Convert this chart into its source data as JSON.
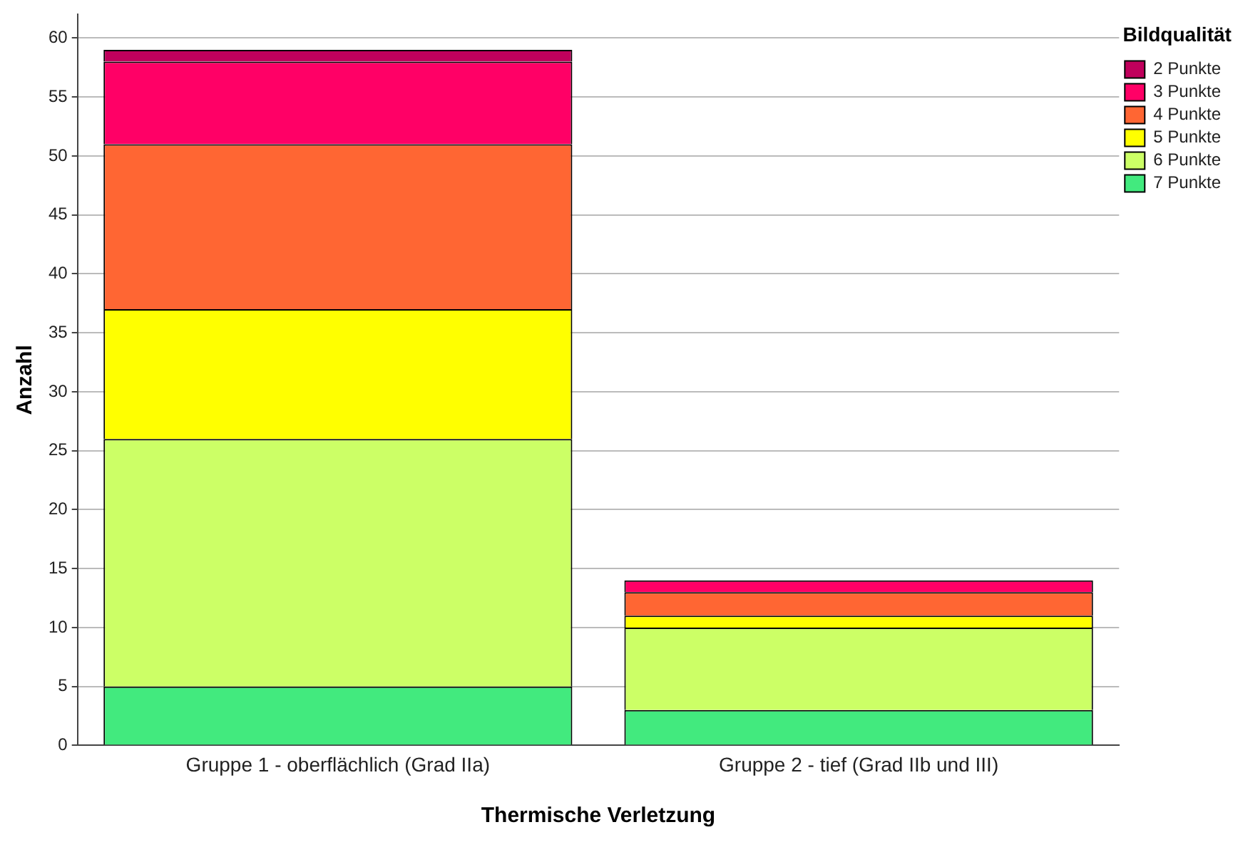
{
  "chart_data": {
    "type": "bar",
    "stacked": true,
    "xlabel": "Thermische Verletzung",
    "ylabel": "Anzahl",
    "legend_title": "Bildqualität",
    "legend": "top right",
    "grid": "y",
    "categories": [
      "Gruppe 1 - oberflächlich (Grad IIa)",
      "Gruppe 2 - tief (Grad IIb und III)"
    ],
    "ylim": [
      0,
      62
    ],
    "yticks": [
      0,
      5,
      10,
      15,
      20,
      25,
      30,
      35,
      40,
      45,
      50,
      55,
      60
    ],
    "series": [
      {
        "name": "7 Punkte",
        "color": "#42ea7e",
        "values": [
          5,
          3
        ]
      },
      {
        "name": "6 Punkte",
        "color": "#ccff66",
        "values": [
          21,
          7
        ]
      },
      {
        "name": "5 Punkte",
        "color": "#ffff00",
        "values": [
          11,
          1
        ]
      },
      {
        "name": "4 Punkte",
        "color": "#ff6633",
        "values": [
          14,
          2
        ]
      },
      {
        "name": "3 Punkte",
        "color": "#ff0066",
        "values": [
          7,
          1
        ]
      },
      {
        "name": "2 Punkte",
        "color": "#c0005c",
        "values": [
          1,
          0
        ]
      }
    ]
  }
}
